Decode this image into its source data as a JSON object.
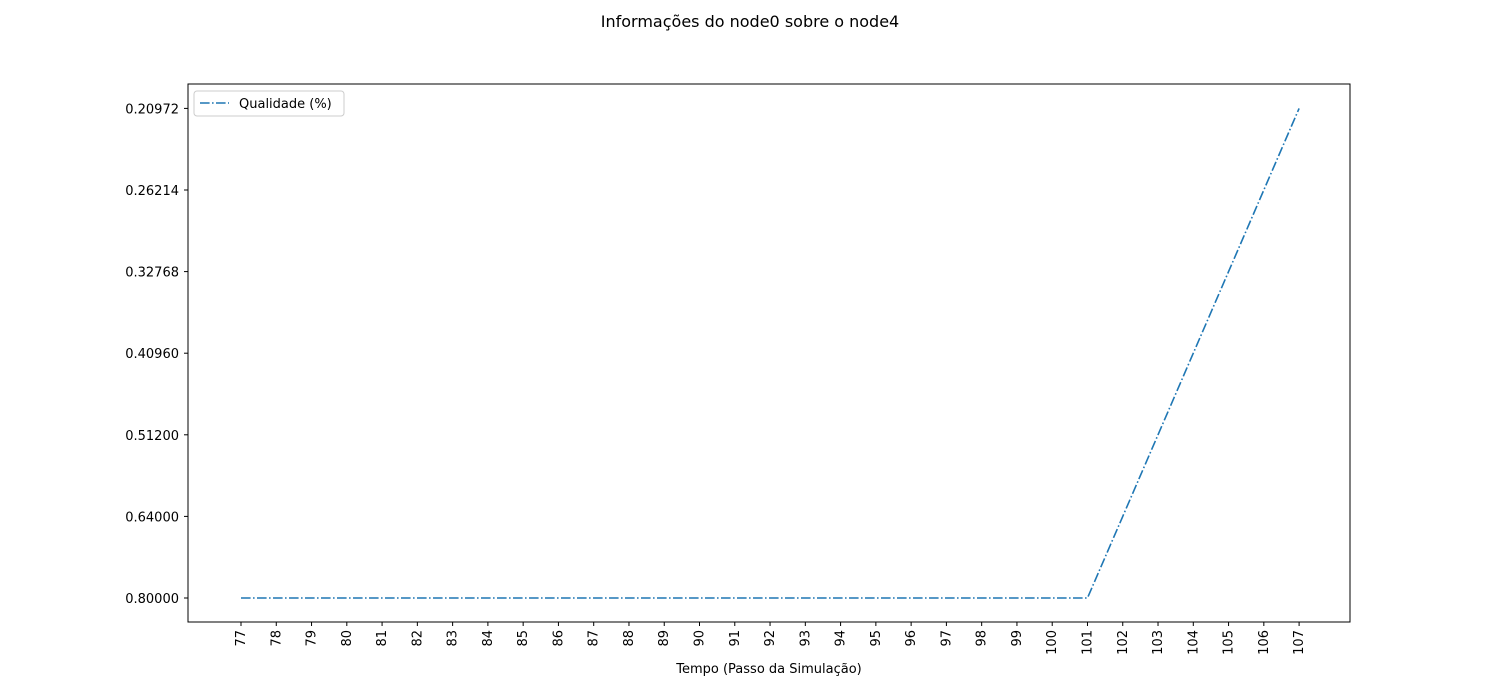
{
  "chart_data": {
    "type": "line",
    "title": "Informações do node0 sobre o node4",
    "xlabel": "Tempo (Passo da Simulação)",
    "ylabel": "",
    "x": [
      77,
      78,
      79,
      80,
      81,
      82,
      83,
      84,
      85,
      86,
      87,
      88,
      89,
      90,
      91,
      92,
      93,
      94,
      95,
      96,
      97,
      98,
      99,
      100,
      101,
      102,
      103,
      104,
      105,
      106,
      107
    ],
    "y_tick_labels": [
      "0.80000",
      "0.64000",
      "0.51200",
      "0.40960",
      "0.32768",
      "0.26214",
      "0.20972"
    ],
    "series": [
      {
        "name": "Qualidade (%)",
        "color": "#1f77b4",
        "line_style": "dash-dot",
        "values": [
          0.8,
          0.8,
          0.8,
          0.8,
          0.8,
          0.8,
          0.8,
          0.8,
          0.8,
          0.8,
          0.8,
          0.8,
          0.8,
          0.8,
          0.8,
          0.8,
          0.8,
          0.8,
          0.8,
          0.8,
          0.8,
          0.8,
          0.8,
          0.8,
          0.8,
          0.64,
          0.512,
          0.4096,
          0.32768,
          0.262144,
          0.2097152
        ]
      }
    ],
    "y_scale": "categorical-ordinal",
    "legend_position": "top-left",
    "grid": false
  }
}
